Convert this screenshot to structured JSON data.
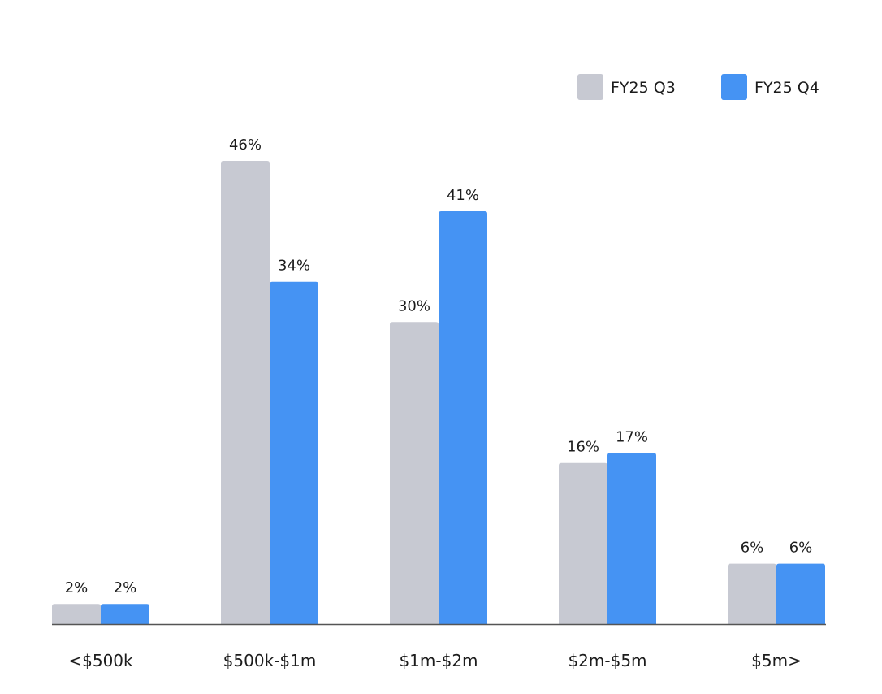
{
  "chart_data": {
    "type": "bar",
    "title": "",
    "xlabel": "",
    "ylabel": "",
    "categories": [
      "<$500k",
      "$500k-$1m",
      "$1m-$2m",
      "$2m-$5m",
      "$5m>"
    ],
    "series": [
      {
        "name": "FY25 Q3",
        "color": "#c7c9d2",
        "values": [
          2,
          46,
          30,
          16,
          6
        ],
        "labels": [
          "2%",
          "46%",
          "30%",
          "16%",
          "6%"
        ]
      },
      {
        "name": "FY25 Q4",
        "color": "#4593f3",
        "values": [
          2,
          34,
          41,
          17,
          6
        ],
        "labels": [
          "2%",
          "34%",
          "41%",
          "17%",
          "6%"
        ]
      }
    ],
    "ylim": [
      0,
      46
    ],
    "grid": false,
    "legend_position": "top-right",
    "axis_color": "#555555"
  }
}
